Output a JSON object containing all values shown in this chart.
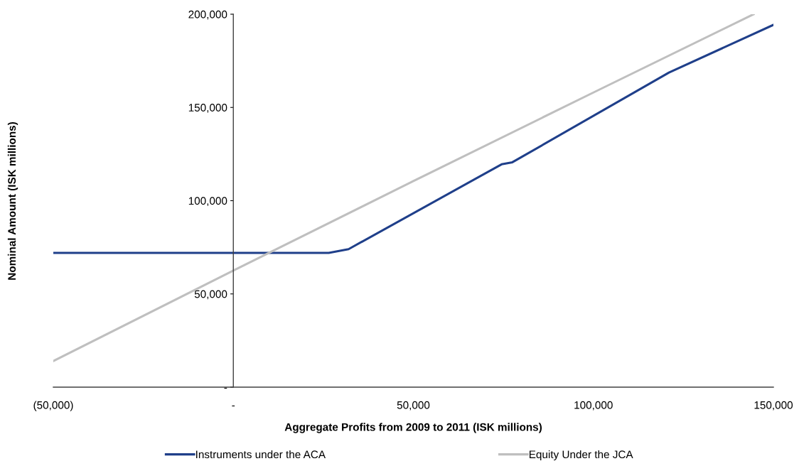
{
  "chart_data": {
    "type": "line",
    "xlabel": "Aggregate Profits from 2009 to 2011 (ISK millions)",
    "ylabel": "Nominal Amount (ISK millions)",
    "series": [
      {
        "name": "Instruments under the ACA",
        "color": "#1f3f8a",
        "x": [
          -50000,
          26500,
          32000,
          74500,
          77500,
          121000,
          150000
        ],
        "values": [
          72000,
          72000,
          74000,
          119500,
          120600,
          168700,
          194300
        ]
      },
      {
        "name": "Equity Under the JCA",
        "color": "#bfbfbf",
        "x": [
          -50000,
          0,
          50000,
          100000,
          144500
        ],
        "values": [
          14000,
          62500,
          110500,
          158000,
          200000
        ]
      }
    ],
    "xlim": [
      -50000,
      150000
    ],
    "xticks": [
      {
        "value": -50000,
        "label": "(50,000)"
      },
      {
        "value": 0,
        "label": "-"
      },
      {
        "value": 50000,
        "label": "50,000"
      },
      {
        "value": 100000,
        "label": "100,000"
      },
      {
        "value": 150000,
        "label": "150,000"
      }
    ],
    "ylim": [
      0,
      200000
    ],
    "yticks": [
      {
        "value": 0,
        "label": "-"
      },
      {
        "value": 50000,
        "label": "50,000"
      },
      {
        "value": 100000,
        "label": "100,000"
      },
      {
        "value": 150000,
        "label": "150,000"
      },
      {
        "value": 200000,
        "label": "200,000"
      }
    ],
    "grid": false,
    "legend": "bottom",
    "marker": "none",
    "line_style": "solid"
  }
}
